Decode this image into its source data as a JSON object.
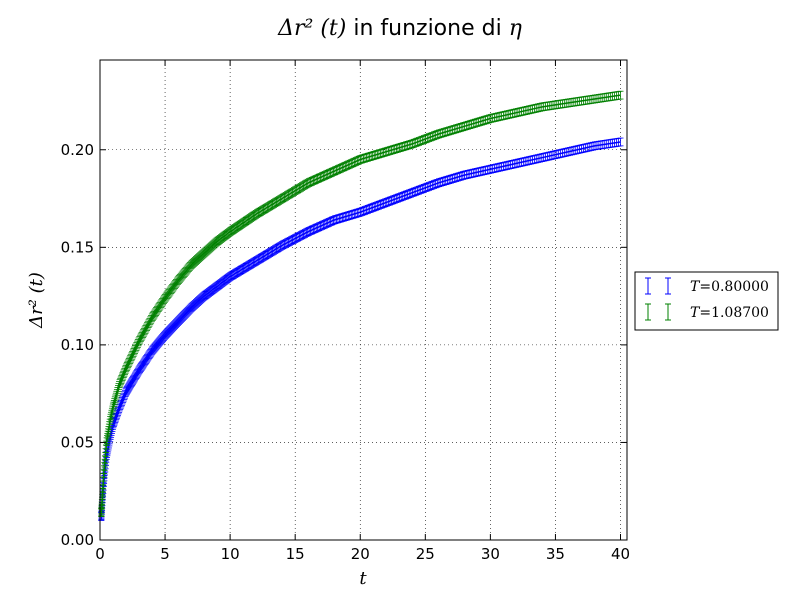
{
  "chart_data": {
    "type": "scatter",
    "title": {
      "math": "Δr² (t)",
      "text": " in funzione di ",
      "math2": "η"
    },
    "xlabel": "t",
    "ylabel": "Δr² (t)",
    "xlim": [
      0,
      40.5
    ],
    "ylim": [
      0,
      0.246
    ],
    "xticks": [
      0,
      5,
      10,
      15,
      20,
      25,
      30,
      35,
      40
    ],
    "xtick_labels": [
      "0",
      "5",
      "10",
      "15",
      "20",
      "25",
      "30",
      "35",
      "40"
    ],
    "yticks": [
      0.0,
      0.05,
      0.1,
      0.15,
      0.2
    ],
    "ytick_labels": [
      "0.00",
      "0.05",
      "0.10",
      "0.15",
      "0.20"
    ],
    "grid": true,
    "legend_position": "right, outside plot",
    "error_bars": true,
    "series": [
      {
        "name": "T=0.80000",
        "legend_var": "T",
        "legend_value": "=0.80000",
        "color": "#0000ff",
        "x": [
          0.1,
          0.3,
          0.5,
          0.8,
          1,
          1.5,
          2,
          3,
          4,
          5,
          6,
          7,
          8,
          9,
          10,
          12,
          14,
          16,
          18,
          20,
          22,
          24,
          26,
          28,
          30,
          32,
          34,
          36,
          38,
          40
        ],
        "y": [
          0.012,
          0.03,
          0.043,
          0.053,
          0.059,
          0.068,
          0.076,
          0.087,
          0.097,
          0.105,
          0.112,
          0.119,
          0.125,
          0.13,
          0.135,
          0.143,
          0.151,
          0.158,
          0.164,
          0.168,
          0.173,
          0.178,
          0.183,
          0.187,
          0.19,
          0.193,
          0.196,
          0.199,
          0.202,
          0.204
        ],
        "yerr": 0.002
      },
      {
        "name": "T=1.08700",
        "legend_var": "T",
        "legend_value": "=1.08700",
        "color": "#008000",
        "x": [
          0.1,
          0.3,
          0.5,
          0.8,
          1,
          1.5,
          2,
          3,
          4,
          5,
          6,
          7,
          8,
          9,
          10,
          12,
          14,
          16,
          18,
          20,
          22,
          24,
          26,
          28,
          30,
          32,
          34,
          36,
          38,
          40
        ],
        "y": [
          0.014,
          0.035,
          0.05,
          0.062,
          0.068,
          0.08,
          0.088,
          0.102,
          0.114,
          0.124,
          0.133,
          0.141,
          0.147,
          0.153,
          0.158,
          0.167,
          0.175,
          0.183,
          0.189,
          0.195,
          0.199,
          0.203,
          0.208,
          0.212,
          0.216,
          0.219,
          0.222,
          0.224,
          0.226,
          0.228
        ],
        "yerr": 0.002
      }
    ]
  }
}
